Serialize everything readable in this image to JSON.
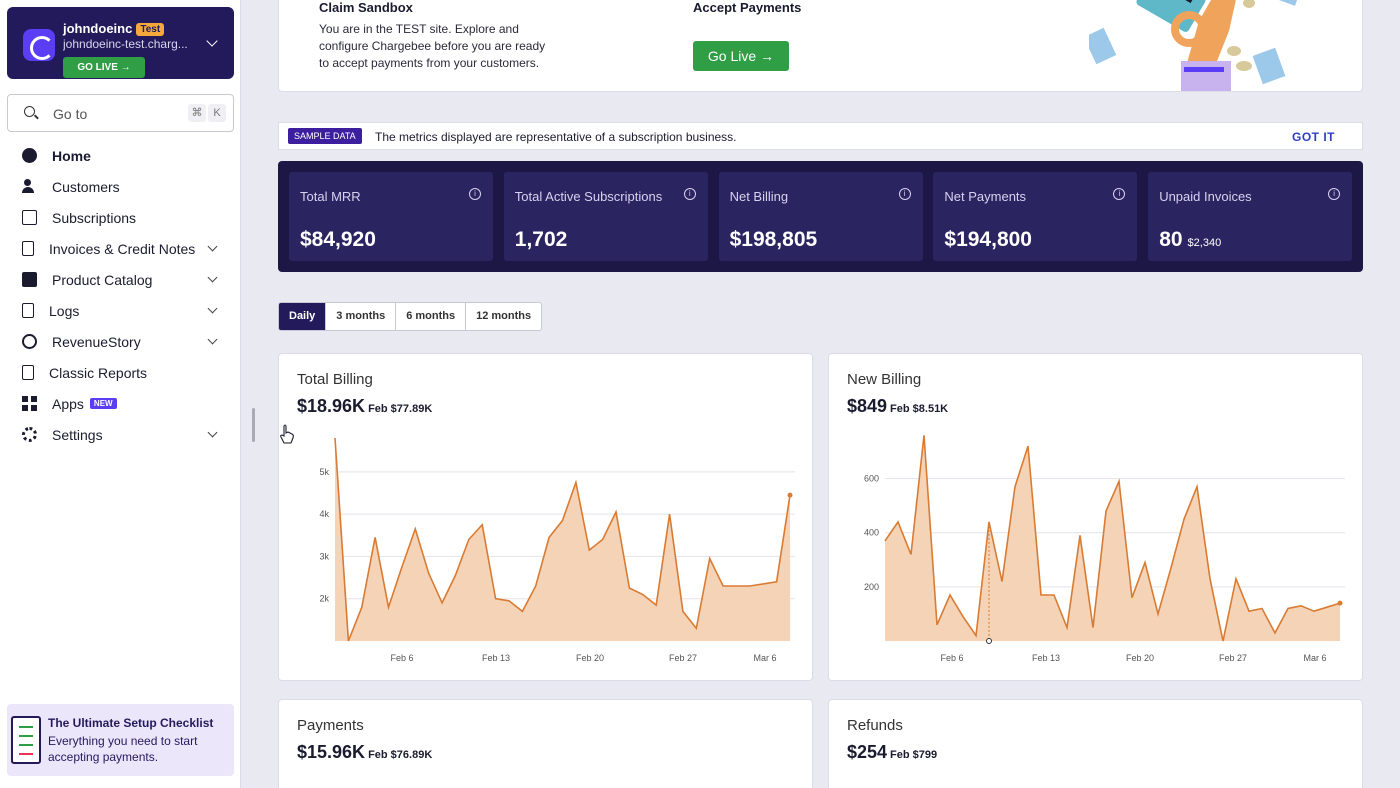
{
  "account": {
    "name": "johndoeinc",
    "badge": "Test",
    "domain": "johndoeinc-test.charg...",
    "go_live": "GO LIVE →"
  },
  "search": {
    "placeholder": "Go to",
    "key1": "⌘",
    "key2": "K"
  },
  "nav": [
    {
      "label": "Home",
      "icon": "home-icon",
      "active": true
    },
    {
      "label": "Customers",
      "icon": "customers-icon"
    },
    {
      "label": "Subscriptions",
      "icon": "subscriptions-icon"
    },
    {
      "label": "Invoices & Credit Notes",
      "icon": "invoices-icon",
      "expandable": true
    },
    {
      "label": "Product Catalog",
      "icon": "product-catalog-icon",
      "expandable": true
    },
    {
      "label": "Logs",
      "icon": "logs-icon",
      "expandable": true
    },
    {
      "label": "RevenueStory",
      "icon": "revenuestory-icon",
      "expandable": true
    },
    {
      "label": "Classic Reports",
      "icon": "classic-reports-icon"
    },
    {
      "label": "Apps",
      "icon": "apps-icon",
      "badge": "NEW"
    },
    {
      "label": "Settings",
      "icon": "settings-icon",
      "expandable": true
    }
  ],
  "checklist": {
    "title": "The Ultimate Setup Checklist",
    "desc": "Everything you need to start accepting payments."
  },
  "banner": {
    "sandbox_title": "Claim Sandbox",
    "sandbox_desc": "You are in the TEST site. Explore and configure Chargebee before you are ready to accept payments from your customers.",
    "accept_title": "Accept Payments",
    "go_live": "Go Live →"
  },
  "sample": {
    "tag": "SAMPLE DATA",
    "message": "The metrics displayed are representative of a subscription business.",
    "dismiss": "GOT IT"
  },
  "metrics": [
    {
      "label": "Total MRR",
      "value": "$84,920",
      "sub": ""
    },
    {
      "label": "Total Active Subscriptions",
      "value": "1,702",
      "sub": ""
    },
    {
      "label": "Net Billing",
      "value": "$198,805",
      "sub": ""
    },
    {
      "label": "Net Payments",
      "value": "$194,800",
      "sub": ""
    },
    {
      "label": "Unpaid Invoices",
      "value": "80",
      "sub": "$2,340"
    }
  ],
  "ranges": [
    {
      "label": "Daily",
      "active": true
    },
    {
      "label": "3 months"
    },
    {
      "label": "6 months"
    },
    {
      "label": "12 months"
    }
  ],
  "colors": {
    "accent": "#231a5c",
    "line": "#d97b33",
    "fill": "#f5d3b6",
    "green": "#2f9e44"
  },
  "cards": [
    {
      "title": "Total Billing",
      "value": "$18.96K",
      "compare": "Feb $77.89K"
    },
    {
      "title": "New Billing",
      "value": "$849",
      "compare": "Feb $8.51K"
    },
    {
      "title": "Payments",
      "value": "$15.96K",
      "compare": "Feb $76.89K"
    },
    {
      "title": "Refunds",
      "value": "$254",
      "compare": "Feb $799"
    }
  ],
  "chart_data": [
    {
      "type": "area",
      "title": "Total Billing",
      "x_ticks": [
        "Feb 6",
        "Feb 13",
        "Feb 20",
        "Feb 27",
        "Mar 6"
      ],
      "y_ticks": [
        "2k",
        "3k",
        "4k",
        "5k"
      ],
      "ylim": [
        1000,
        5800
      ],
      "values": [
        5800,
        1000,
        1800,
        3450,
        1800,
        2750,
        3650,
        2600,
        1900,
        2550,
        3400,
        3750,
        2000,
        1950,
        1700,
        2300,
        3450,
        3850,
        4750,
        3150,
        3400,
        4050,
        2250,
        2100,
        1850,
        4000,
        1700,
        1300,
        2950,
        2300,
        2300,
        2300,
        2350,
        2400,
        4450
      ]
    },
    {
      "type": "area",
      "title": "New Billing",
      "x_ticks": [
        "Feb 6",
        "Feb 13",
        "Feb 20",
        "Feb 27",
        "Mar 6"
      ],
      "y_ticks": [
        "200",
        "400",
        "600"
      ],
      "ylim": [
        0,
        750
      ],
      "values": [
        370,
        440,
        320,
        760,
        60,
        170,
        90,
        20,
        440,
        220,
        570,
        720,
        170,
        170,
        50,
        390,
        50,
        480,
        590,
        160,
        290,
        100,
        270,
        450,
        570,
        230,
        0,
        230,
        110,
        120,
        30,
        120,
        130,
        110,
        125,
        140
      ]
    }
  ]
}
